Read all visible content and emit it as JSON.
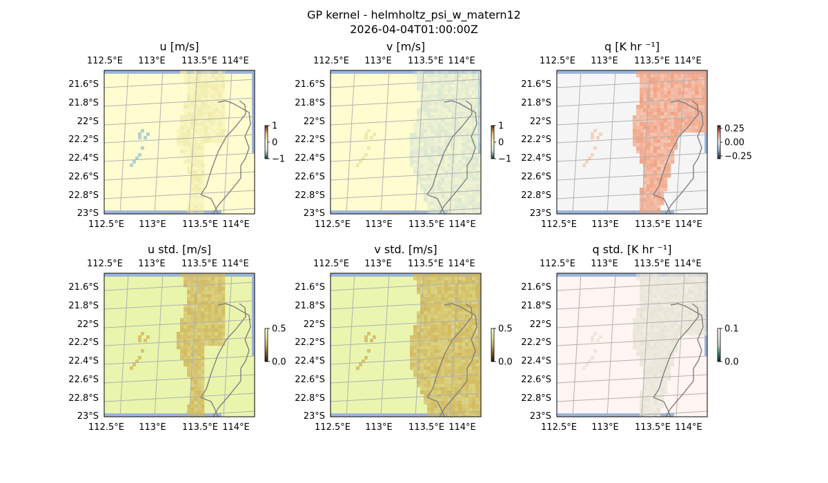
{
  "figure": {
    "title_line1": "GP kernel - helmholtz_psi_w_matern12",
    "title_line2": "2026-04-04T01:00:00Z"
  },
  "chart_data": [
    {
      "type": "heatmap",
      "title": "u [m/s]",
      "lon_ticks": [
        "112.5°E",
        "113°E",
        "113.5°E",
        "114°E"
      ],
      "lat_ticks": [
        "21.6°S",
        "21.8°S",
        "22°S",
        "22.2°S",
        "22.4°S",
        "22.6°S",
        "22.8°S",
        "23°S"
      ],
      "colorbar": {
        "ticks": [
          "1",
          "0",
          "−1"
        ],
        "range": [
          -1,
          1
        ],
        "colors": [
          "#0a3b4a",
          "#d9ece6",
          "#fffbd0",
          "#f0c878",
          "#6a2010"
        ]
      },
      "field": {
        "base_color": "#fffdd0",
        "feature_color": "#eee8a6",
        "scatter_color": "#9fc7cf"
      }
    },
    {
      "type": "heatmap",
      "title": "v [m/s]",
      "lon_ticks": [
        "112.5°E",
        "113°E",
        "113.5°E",
        "114°E"
      ],
      "lat_ticks": [
        "21.6°S",
        "21.8°S",
        "22°S",
        "22.2°S",
        "22.4°S",
        "22.6°S",
        "22.8°S",
        "23°S"
      ],
      "colorbar": {
        "ticks": [
          "1",
          "0",
          "−1"
        ],
        "range": [
          -1,
          1
        ],
        "colors": [
          "#0a3b4a",
          "#d9ece6",
          "#fffbd0",
          "#f0c878",
          "#6a2010"
        ]
      },
      "field": {
        "base_color": "#fffdd0",
        "feature_color": "#d6e3d3",
        "scatter_color": "#eae5a2"
      }
    },
    {
      "type": "heatmap",
      "title": "q [K hr ⁻¹]",
      "lon_ticks": [
        "112.5°E",
        "113°E",
        "113.5°E",
        "114°E"
      ],
      "lat_ticks": [
        "21.6°S",
        "21.8°S",
        "22°S",
        "22.2°S",
        "22.4°S",
        "22.6°S",
        "22.8°S",
        "23°S"
      ],
      "colorbar": {
        "ticks": [
          "0.25",
          "0.00",
          "−0.25"
        ],
        "range": [
          -0.3,
          0.3
        ],
        "colors": [
          "#0b2a4a",
          "#8fb2cf",
          "#f5f5f5",
          "#f0a081",
          "#6a0a18"
        ]
      },
      "field": {
        "base_color": "#f5f5f5",
        "feature_color": "#f2a383",
        "scatter_color": "#f7c8b2"
      }
    },
    {
      "type": "heatmap",
      "title": "u std. [m/s]",
      "lon_ticks": [
        "112.5°E",
        "113°E",
        "113.5°E",
        "114°E"
      ],
      "lat_ticks": [
        "21.6°S",
        "21.8°S",
        "22°S",
        "22.2°S",
        "22.4°S",
        "22.6°S",
        "22.8°S",
        "23°S"
      ],
      "colorbar": {
        "ticks": [
          "0.5",
          "0.0"
        ],
        "range": [
          0,
          0.5
        ],
        "colors": [
          "#2a1a08",
          "#7a5a20",
          "#c8b060",
          "#e6ea9c",
          "#fbfcd8"
        ]
      },
      "field": {
        "base_color": "#e9f5ac",
        "feature_color": "#d1b960",
        "scatter_color": "#d1b960"
      }
    },
    {
      "type": "heatmap",
      "title": "v std. [m/s]",
      "lon_ticks": [
        "112.5°E",
        "113°E",
        "113.5°E",
        "114°E"
      ],
      "lat_ticks": [
        "21.6°S",
        "21.8°S",
        "22°S",
        "22.2°S",
        "22.4°S",
        "22.6°S",
        "22.8°S",
        "23°S"
      ],
      "colorbar": {
        "ticks": [
          "0.5",
          "0.0"
        ],
        "range": [
          0,
          0.5
        ],
        "colors": [
          "#2a1a08",
          "#7a5a20",
          "#c8b060",
          "#e6ea9c",
          "#fbfcd8"
        ]
      },
      "field": {
        "base_color": "#eaf6b0",
        "feature_color": "#d0b85e",
        "scatter_color": "#d0b85e"
      }
    },
    {
      "type": "heatmap",
      "title": "q std. [K hr ⁻¹]",
      "lon_ticks": [
        "112.5°E",
        "113°E",
        "113.5°E",
        "114°E"
      ],
      "lat_ticks": [
        "21.6°S",
        "21.8°S",
        "22°S",
        "22.2°S",
        "22.4°S",
        "22.6°S",
        "22.8°S",
        "23°S"
      ],
      "colorbar": {
        "ticks": [
          "0.1",
          "0.0"
        ],
        "range": [
          0,
          0.1
        ],
        "colors": [
          "#0a2a20",
          "#3a8a78",
          "#c8d8c8",
          "#f3ede0",
          "#fff5f2"
        ]
      },
      "field": {
        "base_color": "#fff5f2",
        "feature_color": "#e7e4d6",
        "scatter_color": "#e7e4d6"
      }
    }
  ]
}
